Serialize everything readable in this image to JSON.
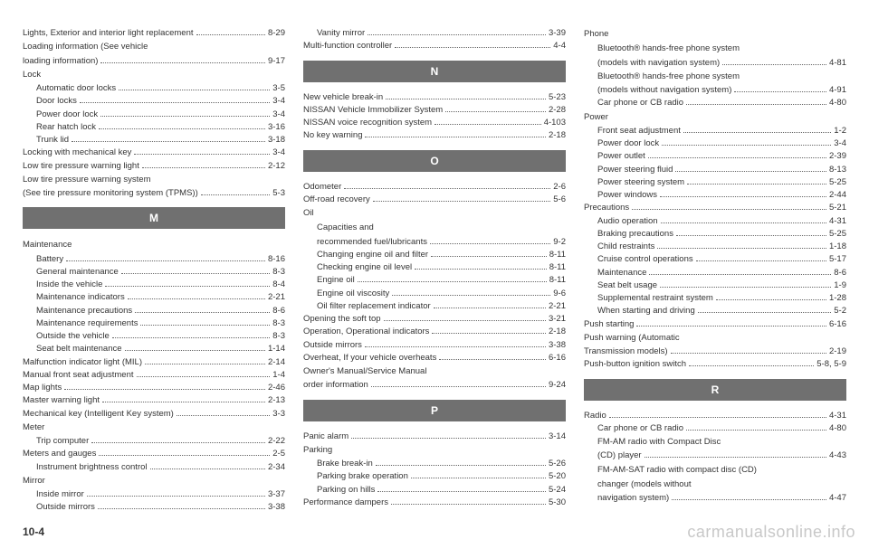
{
  "page_number": "10-4",
  "watermark": "carmanualsonline.info",
  "columns": [
    {
      "items": [
        {
          "type": "entry",
          "label": "Lights, Exterior and interior light replacement",
          "page": "8-29",
          "indent": 0
        },
        {
          "type": "section",
          "label": "Loading information (See vehicle"
        },
        {
          "type": "entry",
          "label": "loading information)",
          "page": "9-17",
          "indent": 0
        },
        {
          "type": "section",
          "label": "Lock"
        },
        {
          "type": "entry",
          "label": "Automatic door locks",
          "page": "3-5",
          "indent": 1
        },
        {
          "type": "entry",
          "label": "Door locks",
          "page": "3-4",
          "indent": 1
        },
        {
          "type": "entry",
          "label": "Power door lock",
          "page": "3-4",
          "indent": 1
        },
        {
          "type": "entry",
          "label": "Rear hatch lock",
          "page": "3-16",
          "indent": 1
        },
        {
          "type": "entry",
          "label": "Trunk lid",
          "page": "3-18",
          "indent": 1
        },
        {
          "type": "entry",
          "label": "Locking with mechanical key",
          "page": "3-4",
          "indent": 0
        },
        {
          "type": "entry",
          "label": "Low tire pressure warning light",
          "page": "2-12",
          "indent": 0
        },
        {
          "type": "section",
          "label": "Low tire pressure warning system"
        },
        {
          "type": "entry",
          "label": "(See tire pressure monitoring system (TPMS))",
          "page": "5-3",
          "indent": 0
        },
        {
          "type": "header",
          "label": "M"
        },
        {
          "type": "section",
          "label": "Maintenance"
        },
        {
          "type": "entry",
          "label": "Battery",
          "page": "8-16",
          "indent": 1
        },
        {
          "type": "entry",
          "label": "General maintenance",
          "page": "8-3",
          "indent": 1
        },
        {
          "type": "entry",
          "label": "Inside the vehicle",
          "page": "8-4",
          "indent": 1
        },
        {
          "type": "entry",
          "label": "Maintenance indicators",
          "page": "2-21",
          "indent": 1
        },
        {
          "type": "entry",
          "label": "Maintenance precautions",
          "page": "8-6",
          "indent": 1
        },
        {
          "type": "entry",
          "label": "Maintenance requirements",
          "page": "8-3",
          "indent": 1
        },
        {
          "type": "entry",
          "label": "Outside the vehicle",
          "page": "8-3",
          "indent": 1
        },
        {
          "type": "entry",
          "label": "Seat belt maintenance",
          "page": "1-14",
          "indent": 1
        },
        {
          "type": "entry",
          "label": "Malfunction indicator light (MIL)",
          "page": "2-14",
          "indent": 0
        },
        {
          "type": "entry",
          "label": "Manual front seat adjustment",
          "page": "1-4",
          "indent": 0
        },
        {
          "type": "entry",
          "label": "Map lights",
          "page": "2-46",
          "indent": 0
        },
        {
          "type": "entry",
          "label": "Master warning light",
          "page": "2-13",
          "indent": 0
        },
        {
          "type": "entry",
          "label": "Mechanical key (Intelligent Key system)",
          "page": "3-3",
          "indent": 0
        },
        {
          "type": "section",
          "label": "Meter"
        },
        {
          "type": "entry",
          "label": "Trip computer",
          "page": "2-22",
          "indent": 1
        },
        {
          "type": "entry",
          "label": "Meters and gauges",
          "page": "2-5",
          "indent": 0
        },
        {
          "type": "entry",
          "label": "Instrument brightness control",
          "page": "2-34",
          "indent": 1
        },
        {
          "type": "section",
          "label": "Mirror"
        },
        {
          "type": "entry",
          "label": "Inside mirror",
          "page": "3-37",
          "indent": 1
        },
        {
          "type": "entry",
          "label": "Outside mirrors",
          "page": "3-38",
          "indent": 1
        }
      ]
    },
    {
      "items": [
        {
          "type": "entry",
          "label": "Vanity mirror",
          "page": "3-39",
          "indent": 1
        },
        {
          "type": "entry",
          "label": "Multi-function controller",
          "page": "4-4",
          "indent": 0
        },
        {
          "type": "header",
          "label": "N"
        },
        {
          "type": "entry",
          "label": "New vehicle break-in",
          "page": "5-23",
          "indent": 0
        },
        {
          "type": "entry",
          "label": "NISSAN Vehicle Immobilizer System",
          "page": "2-28",
          "indent": 0
        },
        {
          "type": "entry",
          "label": "NISSAN voice recognition system",
          "page": "4-103",
          "indent": 0
        },
        {
          "type": "entry",
          "label": "No key warning",
          "page": "2-18",
          "indent": 0
        },
        {
          "type": "header",
          "label": "O"
        },
        {
          "type": "entry",
          "label": "Odometer",
          "page": "2-6",
          "indent": 0
        },
        {
          "type": "entry",
          "label": "Off-road recovery",
          "page": "5-6",
          "indent": 0
        },
        {
          "type": "section",
          "label": "Oil"
        },
        {
          "type": "section",
          "label": "Capacities and",
          "indent": 1
        },
        {
          "type": "entry",
          "label": "recommended fuel/lubricants",
          "page": "9-2",
          "indent": 1
        },
        {
          "type": "entry",
          "label": "Changing engine oil and filter",
          "page": "8-11",
          "indent": 1
        },
        {
          "type": "entry",
          "label": "Checking engine oil level",
          "page": "8-11",
          "indent": 1
        },
        {
          "type": "entry",
          "label": "Engine oil",
          "page": "8-11",
          "indent": 1
        },
        {
          "type": "entry",
          "label": "Engine oil viscosity",
          "page": "9-6",
          "indent": 1
        },
        {
          "type": "entry",
          "label": "Oil filter replacement indicator",
          "page": "2-21",
          "indent": 1
        },
        {
          "type": "entry",
          "label": "Opening the soft top",
          "page": "3-21",
          "indent": 0
        },
        {
          "type": "entry",
          "label": "Operation, Operational indicators",
          "page": "2-18",
          "indent": 0
        },
        {
          "type": "entry",
          "label": "Outside mirrors",
          "page": "3-38",
          "indent": 0
        },
        {
          "type": "entry",
          "label": "Overheat, If your vehicle overheats",
          "page": "6-16",
          "indent": 0
        },
        {
          "type": "section",
          "label": "Owner's Manual/Service Manual"
        },
        {
          "type": "entry",
          "label": "order information",
          "page": "9-24",
          "indent": 0
        },
        {
          "type": "header",
          "label": "P"
        },
        {
          "type": "entry",
          "label": "Panic alarm",
          "page": "3-14",
          "indent": 0
        },
        {
          "type": "section",
          "label": "Parking"
        },
        {
          "type": "entry",
          "label": "Brake break-in",
          "page": "5-26",
          "indent": 1
        },
        {
          "type": "entry",
          "label": "Parking brake operation",
          "page": "5-20",
          "indent": 1
        },
        {
          "type": "entry",
          "label": "Parking on hills",
          "page": "5-24",
          "indent": 1
        },
        {
          "type": "entry",
          "label": "Performance dampers",
          "page": "5-30",
          "indent": 0
        }
      ]
    },
    {
      "items": [
        {
          "type": "section",
          "label": "Phone"
        },
        {
          "type": "section",
          "label": "Bluetooth® hands-free phone system",
          "indent": 1
        },
        {
          "type": "entry",
          "label": "(models with navigation system)",
          "page": "4-81",
          "indent": 1
        },
        {
          "type": "section",
          "label": "Bluetooth® hands-free phone system",
          "indent": 1
        },
        {
          "type": "entry",
          "label": "(models without navigation system)",
          "page": "4-91",
          "indent": 1
        },
        {
          "type": "entry",
          "label": "Car phone or CB radio",
          "page": "4-80",
          "indent": 1
        },
        {
          "type": "section",
          "label": "Power"
        },
        {
          "type": "entry",
          "label": "Front seat adjustment",
          "page": "1-2",
          "indent": 1
        },
        {
          "type": "entry",
          "label": "Power door lock",
          "page": "3-4",
          "indent": 1
        },
        {
          "type": "entry",
          "label": "Power outlet",
          "page": "2-39",
          "indent": 1
        },
        {
          "type": "entry",
          "label": "Power steering fluid",
          "page": "8-13",
          "indent": 1
        },
        {
          "type": "entry",
          "label": "Power steering system",
          "page": "5-25",
          "indent": 1
        },
        {
          "type": "entry",
          "label": "Power windows",
          "page": "2-44",
          "indent": 1
        },
        {
          "type": "entry",
          "label": "Precautions",
          "page": "5-21",
          "indent": 0
        },
        {
          "type": "entry",
          "label": "Audio operation",
          "page": "4-31",
          "indent": 1
        },
        {
          "type": "entry",
          "label": "Braking precautions",
          "page": "5-25",
          "indent": 1
        },
        {
          "type": "entry",
          "label": "Child restraints",
          "page": "1-18",
          "indent": 1
        },
        {
          "type": "entry",
          "label": "Cruise control operations",
          "page": "5-17",
          "indent": 1
        },
        {
          "type": "entry",
          "label": "Maintenance",
          "page": "8-6",
          "indent": 1
        },
        {
          "type": "entry",
          "label": "Seat belt usage",
          "page": "1-9",
          "indent": 1
        },
        {
          "type": "entry",
          "label": "Supplemental restraint system",
          "page": "1-28",
          "indent": 1
        },
        {
          "type": "entry",
          "label": "When starting and driving",
          "page": "5-2",
          "indent": 1
        },
        {
          "type": "entry",
          "label": "Push starting",
          "page": "6-16",
          "indent": 0
        },
        {
          "type": "section",
          "label": "Push warning (Automatic"
        },
        {
          "type": "entry",
          "label": "Transmission models)",
          "page": "2-19",
          "indent": 0
        },
        {
          "type": "entry",
          "label": "Push-button ignition switch",
          "page": "5-8, 5-9",
          "indent": 0
        },
        {
          "type": "header",
          "label": "R"
        },
        {
          "type": "entry",
          "label": "Radio",
          "page": "4-31",
          "indent": 0
        },
        {
          "type": "entry",
          "label": "Car phone or CB radio",
          "page": "4-80",
          "indent": 1
        },
        {
          "type": "section",
          "label": "FM-AM radio with Compact Disc",
          "indent": 1
        },
        {
          "type": "entry",
          "label": "(CD) player",
          "page": "4-43",
          "indent": 1
        },
        {
          "type": "section",
          "label": "FM-AM-SAT radio with compact disc (CD)",
          "indent": 1
        },
        {
          "type": "section",
          "label": "changer (models without",
          "indent": 1
        },
        {
          "type": "entry",
          "label": "navigation system)",
          "page": "4-47",
          "indent": 1
        }
      ]
    }
  ]
}
